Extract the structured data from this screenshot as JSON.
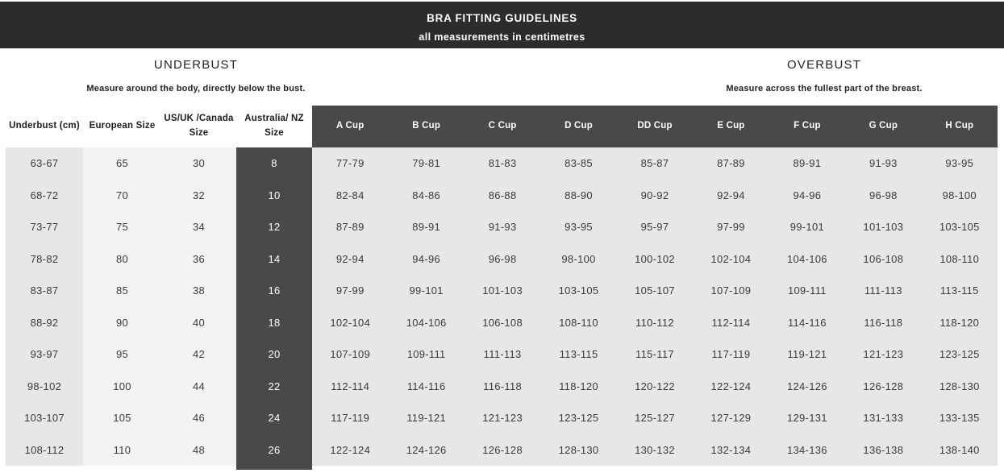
{
  "banner": {
    "title": "BRA FITTING GUIDELINES",
    "subtitle": "all measurements in centimetres"
  },
  "sections": {
    "underbust": {
      "title": "UNDERBUST",
      "description": "Measure around the body, directly below the bust."
    },
    "overbust": {
      "title": "OVERBUST",
      "description": "Measure across the fullest part of the breast."
    }
  },
  "colors": {
    "banner_bg": "#2d2c2b",
    "header_dark_bg": "#4a4949",
    "cell_gray": "#e8e7e6",
    "cell_light": "#f4f3f2",
    "text_dark": "#3b3a39",
    "text_white": "#ffffff"
  },
  "table": {
    "columns": [
      {
        "key": "underbust-cm",
        "label": "Underbust (cm)",
        "style": "light"
      },
      {
        "key": "european-size",
        "label": "European Size",
        "style": "light"
      },
      {
        "key": "us-uk-canada-size",
        "label": "US/UK /Canada Size",
        "style": "light"
      },
      {
        "key": "australia-nz-size",
        "label": "Australia/ NZ Size",
        "style": "light"
      },
      {
        "key": "a-cup",
        "label": "A Cup",
        "style": "dark"
      },
      {
        "key": "b-cup",
        "label": "B Cup",
        "style": "dark"
      },
      {
        "key": "c-cup",
        "label": "C Cup",
        "style": "dark"
      },
      {
        "key": "d-cup",
        "label": "D Cup",
        "style": "dark"
      },
      {
        "key": "dd-cup",
        "label": "DD Cup",
        "style": "dark"
      },
      {
        "key": "e-cup",
        "label": "E Cup",
        "style": "dark"
      },
      {
        "key": "f-cup",
        "label": "F Cup",
        "style": "dark"
      },
      {
        "key": "g-cup",
        "label": "G Cup",
        "style": "dark"
      },
      {
        "key": "h-cup",
        "label": "H Cup",
        "style": "dark"
      }
    ],
    "rows": [
      [
        "63-67",
        "65",
        "30",
        "8",
        "77-79",
        "79-81",
        "81-83",
        "83-85",
        "85-87",
        "87-89",
        "89-91",
        "91-93",
        "93-95"
      ],
      [
        "68-72",
        "70",
        "32",
        "10",
        "82-84",
        "84-86",
        "86-88",
        "88-90",
        "90-92",
        "92-94",
        "94-96",
        "96-98",
        "98-100"
      ],
      [
        "73-77",
        "75",
        "34",
        "12",
        "87-89",
        "89-91",
        "91-93",
        "93-95",
        "95-97",
        "97-99",
        "99-101",
        "101-103",
        "103-105"
      ],
      [
        "78-82",
        "80",
        "36",
        "14",
        "92-94",
        "94-96",
        "96-98",
        "98-100",
        "100-102",
        "102-104",
        "104-106",
        "106-108",
        "108-110"
      ],
      [
        "83-87",
        "85",
        "38",
        "16",
        "97-99",
        "99-101",
        "101-103",
        "103-105",
        "105-107",
        "107-109",
        "109-111",
        "111-113",
        "113-115"
      ],
      [
        "88-92",
        "90",
        "40",
        "18",
        "102-104",
        "104-106",
        "106-108",
        "108-110",
        "110-112",
        "112-114",
        "114-116",
        "116-118",
        "118-120"
      ],
      [
        "93-97",
        "95",
        "42",
        "20",
        "107-109",
        "109-111",
        "111-113",
        "113-115",
        "115-117",
        "117-119",
        "119-121",
        "121-123",
        "123-125"
      ],
      [
        "98-102",
        "100",
        "44",
        "22",
        "112-114",
        "114-116",
        "116-118",
        "118-120",
        "120-122",
        "122-124",
        "124-126",
        "126-128",
        "128-130"
      ],
      [
        "103-107",
        "105",
        "46",
        "24",
        "117-119",
        "119-121",
        "121-123",
        "123-125",
        "125-127",
        "127-129",
        "129-131",
        "131-133",
        "133-135"
      ],
      [
        "108-112",
        "110",
        "48",
        "26",
        "122-124",
        "124-126",
        "126-128",
        "128-130",
        "130-132",
        "132-134",
        "134-136",
        "136-138",
        "138-140"
      ]
    ]
  }
}
